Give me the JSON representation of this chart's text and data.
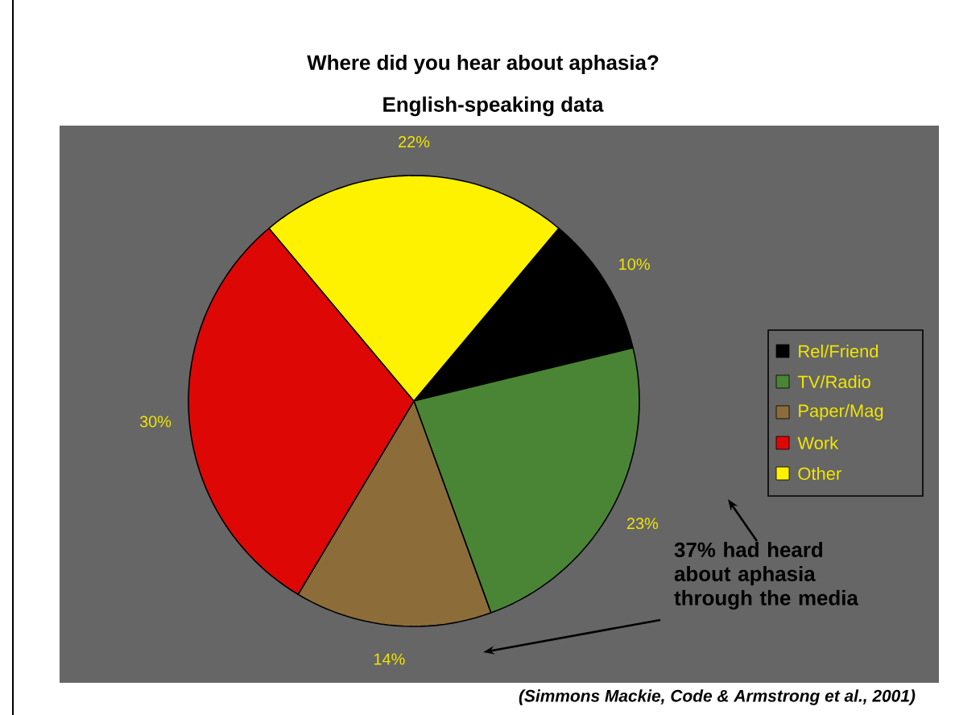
{
  "chart_data": {
    "type": "pie",
    "title": "Where did you hear about aphasia?",
    "subtitle": "English-speaking data",
    "categories": [
      "Rel/Friend",
      "TV/Radio",
      "Paper/Mag",
      "Work",
      "Other"
    ],
    "values": [
      10,
      23,
      14,
      30,
      22
    ],
    "colors": [
      "#000000",
      "#4a8535",
      "#8c6d3a",
      "#dd0806",
      "#fff200"
    ],
    "value_labels": [
      "10%",
      "23%",
      "14%",
      "30%",
      "22%"
    ],
    "legend": "right",
    "annotations": [
      "37% had heard about aphasia through the media",
      "(Simmons Mackie, Code & Armstrong  et al., 2001)"
    ]
  }
}
